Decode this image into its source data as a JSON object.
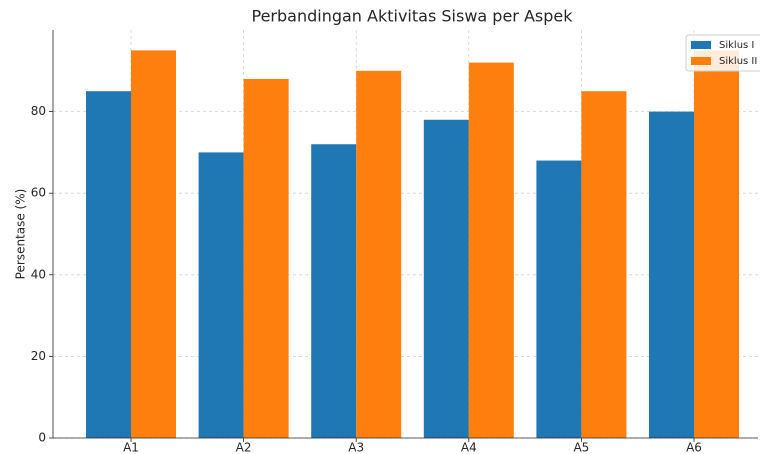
{
  "chart_data": {
    "type": "bar",
    "title": "Perbandingan Aktivitas Siswa per Aspek",
    "y_label": "Persentase (%)",
    "categories": [
      "A1",
      "A2",
      "A3",
      "A4",
      "A5",
      "A6"
    ],
    "series": [
      {
        "name": "Siklus I",
        "color": "#1f77b4",
        "values": [
          85,
          70,
          72,
          78,
          68,
          80
        ]
      },
      {
        "name": "Siklus II",
        "color": "#ff7f0e",
        "values": [
          95,
          88,
          90,
          92,
          85,
          95
        ]
      }
    ],
    "ylim": [
      0,
      100
    ],
    "yticks": [
      0,
      20,
      40,
      60,
      80
    ],
    "grid": true,
    "legend": "upper right"
  }
}
